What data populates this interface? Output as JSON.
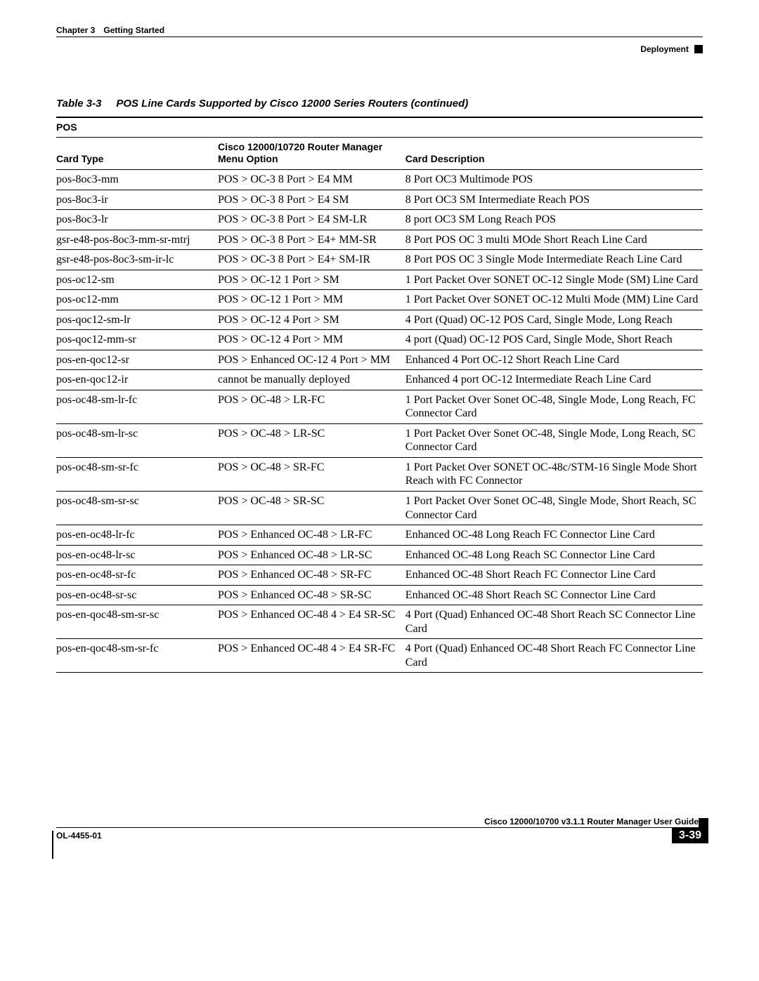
{
  "header": {
    "chapter_num": "Chapter 3",
    "chapter_title": "Getting Started",
    "section": "Deployment"
  },
  "table": {
    "caption_num": "Table 3-3",
    "caption_text": "POS Line Cards Supported by Cisco 12000 Series Routers (continued)",
    "group_label": "POS",
    "columns": {
      "card_type": "Card Type",
      "menu_option_top": "Cisco 12000/10720 Router Manager",
      "menu_option_bottom": "Menu Option",
      "card_description": "Card Description"
    },
    "rows": [
      {
        "card_type": "pos-8oc3-mm",
        "menu_option": "POS > OC-3 8 Port > E4 MM",
        "card_description": "8 Port OC3 Multimode POS"
      },
      {
        "card_type": "pos-8oc3-ir",
        "menu_option": "POS > OC-3 8 Port > E4 SM",
        "card_description": "8 Port OC3 SM Intermediate Reach POS"
      },
      {
        "card_type": "pos-8oc3-lr",
        "menu_option": "POS > OC-3 8 Port > E4 SM-LR",
        "card_description": "8 port OC3 SM Long Reach POS"
      },
      {
        "card_type": "gsr-e48-pos-8oc3-mm-sr-mtrj",
        "menu_option": "POS > OC-3 8 Port > E4+ MM-SR",
        "card_description": "8 Port POS OC 3 multi MOde Short Reach Line Card"
      },
      {
        "card_type": "gsr-e48-pos-8oc3-sm-ir-lc",
        "menu_option": "POS > OC-3 8 Port > E4+ SM-IR",
        "card_description": "8 Port POS OC 3 Single Mode Intermediate Reach Line Card"
      },
      {
        "card_type": "pos-oc12-sm",
        "menu_option": "POS > OC-12 1 Port > SM",
        "card_description": "1 Port Packet Over SONET OC-12 Single Mode (SM) Line Card"
      },
      {
        "card_type": "pos-oc12-mm",
        "menu_option": "POS > OC-12 1 Port > MM",
        "card_description": "1 Port Packet Over SONET OC-12 Multi Mode (MM) Line Card"
      },
      {
        "card_type": "pos-qoc12-sm-lr",
        "menu_option": "POS > OC-12 4 Port > SM",
        "card_description": "4 Port (Quad) OC-12 POS Card, Single Mode, Long Reach"
      },
      {
        "card_type": "pos-qoc12-mm-sr",
        "menu_option": "POS > OC-12 4 Port > MM",
        "card_description": "4 port (Quad) OC-12 POS Card, Single Mode, Short Reach"
      },
      {
        "card_type": "pos-en-qoc12-sr",
        "menu_option": "POS > Enhanced OC-12 4 Port > MM",
        "card_description": "Enhanced 4 Port OC-12 Short Reach Line Card"
      },
      {
        "card_type": "pos-en-qoc12-ir",
        "menu_option": "cannot be manually deployed",
        "card_description": "Enhanced 4 port OC-12 Intermediate Reach Line Card"
      },
      {
        "card_type": "pos-oc48-sm-lr-fc",
        "menu_option": "POS > OC-48 > LR-FC",
        "card_description": "1 Port Packet Over Sonet OC-48, Single Mode, Long Reach, FC Connector Card"
      },
      {
        "card_type": "pos-oc48-sm-lr-sc",
        "menu_option": "POS > OC-48 > LR-SC",
        "card_description": "1 Port Packet Over Sonet OC-48, Single Mode, Long Reach, SC Connector Card"
      },
      {
        "card_type": "pos-oc48-sm-sr-fc",
        "menu_option": "POS > OC-48 > SR-FC",
        "card_description": "1 Port Packet Over SONET OC-48c/STM-16 Single Mode Short Reach with FC Connector"
      },
      {
        "card_type": "pos-oc48-sm-sr-sc",
        "menu_option": "POS > OC-48 > SR-SC",
        "card_description": "1 Port Packet Over Sonet OC-48, Single Mode, Short Reach, SC Connector Card"
      },
      {
        "card_type": "pos-en-oc48-lr-fc",
        "menu_option": "POS > Enhanced OC-48 > LR-FC",
        "card_description": "Enhanced OC-48 Long Reach FC Connector Line Card"
      },
      {
        "card_type": "pos-en-oc48-lr-sc",
        "menu_option": "POS > Enhanced OC-48 > LR-SC",
        "card_description": "Enhanced OC-48 Long Reach SC Connector Line Card"
      },
      {
        "card_type": "pos-en-oc48-sr-fc",
        "menu_option": "POS > Enhanced OC-48 > SR-FC",
        "card_description": "Enhanced OC-48 Short Reach FC Connector Line Card"
      },
      {
        "card_type": "pos-en-oc48-sr-sc",
        "menu_option": "POS > Enhanced OC-48 > SR-SC",
        "card_description": "Enhanced OC-48 Short Reach SC Connector Line Card"
      },
      {
        "card_type": "pos-en-qoc48-sm-sr-sc",
        "menu_option": "POS > Enhanced OC-48 4 > E4 SR-SC",
        "card_description": "4 Port (Quad) Enhanced OC-48 Short Reach SC Connector Line Card"
      },
      {
        "card_type": "pos-en-qoc48-sm-sr-fc",
        "menu_option": "POS > Enhanced OC-48 4 > E4 SR-FC",
        "card_description": "4 Port (Quad) Enhanced OC-48 Short Reach FC Connector Line Card"
      }
    ]
  },
  "footer": {
    "guide": "Cisco 12000/10700 v3.1.1 Router Manager User Guide",
    "doc_id": "OL-4455-01",
    "page_num": "3-39"
  }
}
